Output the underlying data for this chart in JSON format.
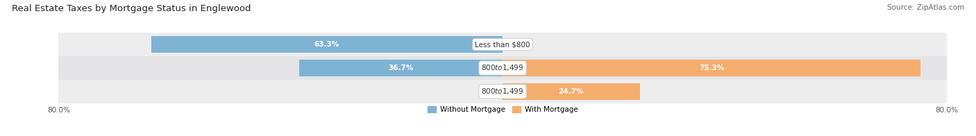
{
  "title": "Real Estate Taxes by Mortgage Status in Englewood",
  "source": "Source: ZipAtlas.com",
  "rows": [
    {
      "label": "Less than $800",
      "without_mortgage": 63.3,
      "with_mortgage": 0.0
    },
    {
      "label": "$800 to $1,499",
      "without_mortgage": 36.7,
      "with_mortgage": 75.3
    },
    {
      "label": "$800 to $1,499",
      "without_mortgage": 0.0,
      "with_mortgage": 24.7
    }
  ],
  "x_min": -80.0,
  "x_max": 80.0,
  "color_without": "#7fb3d3",
  "color_with": "#f5ad6e",
  "color_without_light": "#b8d4e8",
  "color_with_light": "#fad9b0",
  "bar_height": 0.72,
  "row_bg_colors": [
    "#ededee",
    "#e4e4e6",
    "#ededee"
  ],
  "legend_without": "Without Mortgage",
  "legend_with": "With Mortgage",
  "title_fontsize": 9.5,
  "source_fontsize": 7.5,
  "label_fontsize": 7.5,
  "pct_fontsize": 7.5
}
